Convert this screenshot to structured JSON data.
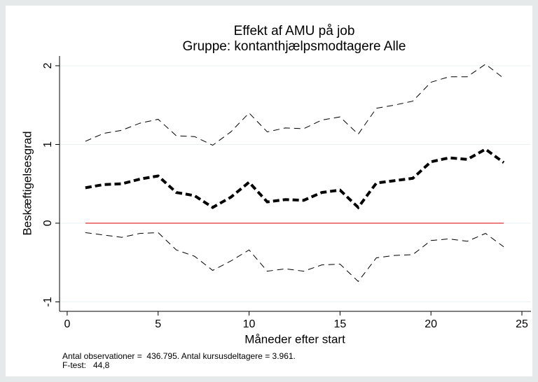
{
  "chart_data": {
    "type": "line",
    "title": "Effekt af AMU på job",
    "subtitle": "Gruppe: kontanthjælpsmodtagere Alle",
    "xlabel": "Måneder efter start",
    "ylabel": "Beskæftigelsesgrad",
    "notes": [
      "Antal observationer =  436.795. Antal kursusdeltagere = 3.961.",
      "F-test:   44,8"
    ],
    "x": [
      1,
      2,
      3,
      4,
      5,
      6,
      7,
      8,
      9,
      10,
      11,
      12,
      13,
      14,
      15,
      16,
      17,
      18,
      19,
      20,
      21,
      22,
      23,
      24
    ],
    "series": [
      {
        "color": "#000000",
        "style": "dashed-thick",
        "values": [
          0.45,
          0.49,
          0.5,
          0.56,
          0.6,
          0.39,
          0.35,
          0.2,
          0.33,
          0.52,
          0.27,
          0.3,
          0.29,
          0.39,
          0.42,
          0.2,
          0.51,
          0.54,
          0.57,
          0.78,
          0.83,
          0.81,
          0.94,
          0.77
        ]
      },
      {
        "color": "#000000",
        "style": "dashed",
        "values": [
          1.04,
          1.14,
          1.18,
          1.27,
          1.32,
          1.11,
          1.1,
          0.99,
          1.16,
          1.4,
          1.16,
          1.21,
          1.2,
          1.31,
          1.35,
          1.13,
          1.46,
          1.5,
          1.55,
          1.79,
          1.86,
          1.86,
          2.02,
          1.84
        ]
      },
      {
        "color": "#000000",
        "style": "dashed",
        "values": [
          -0.12,
          -0.15,
          -0.18,
          -0.13,
          -0.12,
          -0.34,
          -0.42,
          -0.6,
          -0.48,
          -0.34,
          -0.61,
          -0.58,
          -0.61,
          -0.53,
          -0.52,
          -0.74,
          -0.44,
          -0.41,
          -0.4,
          -0.22,
          -0.2,
          -0.23,
          -0.13,
          -0.3
        ]
      }
    ],
    "reference_line": {
      "y": 0,
      "x": [
        1,
        24
      ],
      "color": "#e03030"
    },
    "xlim": [
      -0.42,
      25.5
    ],
    "xticks": [
      0,
      5,
      10,
      15,
      20,
      25
    ],
    "ylim": [
      -1.12,
      2.124
    ],
    "yticks": [
      -1,
      0,
      1,
      2
    ],
    "grid": true
  }
}
